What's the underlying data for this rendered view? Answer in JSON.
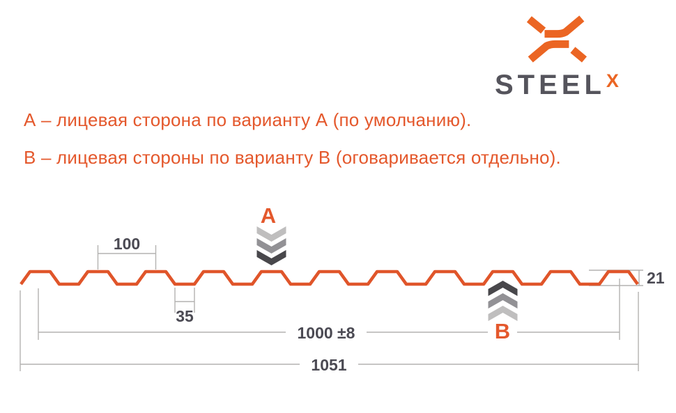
{
  "logo": {
    "brand": "STEEL",
    "superscript": "X",
    "icon": "steelx-interlocked-x",
    "orange": "#EB6523",
    "slate": "#55545C"
  },
  "legend": {
    "line_a": "А – лицевая сторона по варианту А (по умолчанию).",
    "line_b": "В – лицевая стороны по варианту В (оговаривается отдельно)."
  },
  "diagram": {
    "type": "profiled-sheet-cross-section",
    "side_a_label": "A",
    "side_b_label": "B",
    "dimensions": {
      "pitch": "100",
      "valley_width": "35",
      "working_width": "1000 ±8",
      "overall_width": "1051",
      "height": "21"
    }
  },
  "colors": {
    "accent_orange": "#E4582C",
    "profile_orange": "#E0552A",
    "dim_gray": "#B3B2B0",
    "text_slate": "#4B4A53",
    "chevron_light": "#BFBEBE",
    "chevron_mid": "#929195",
    "chevron_dark": "#48474B"
  }
}
